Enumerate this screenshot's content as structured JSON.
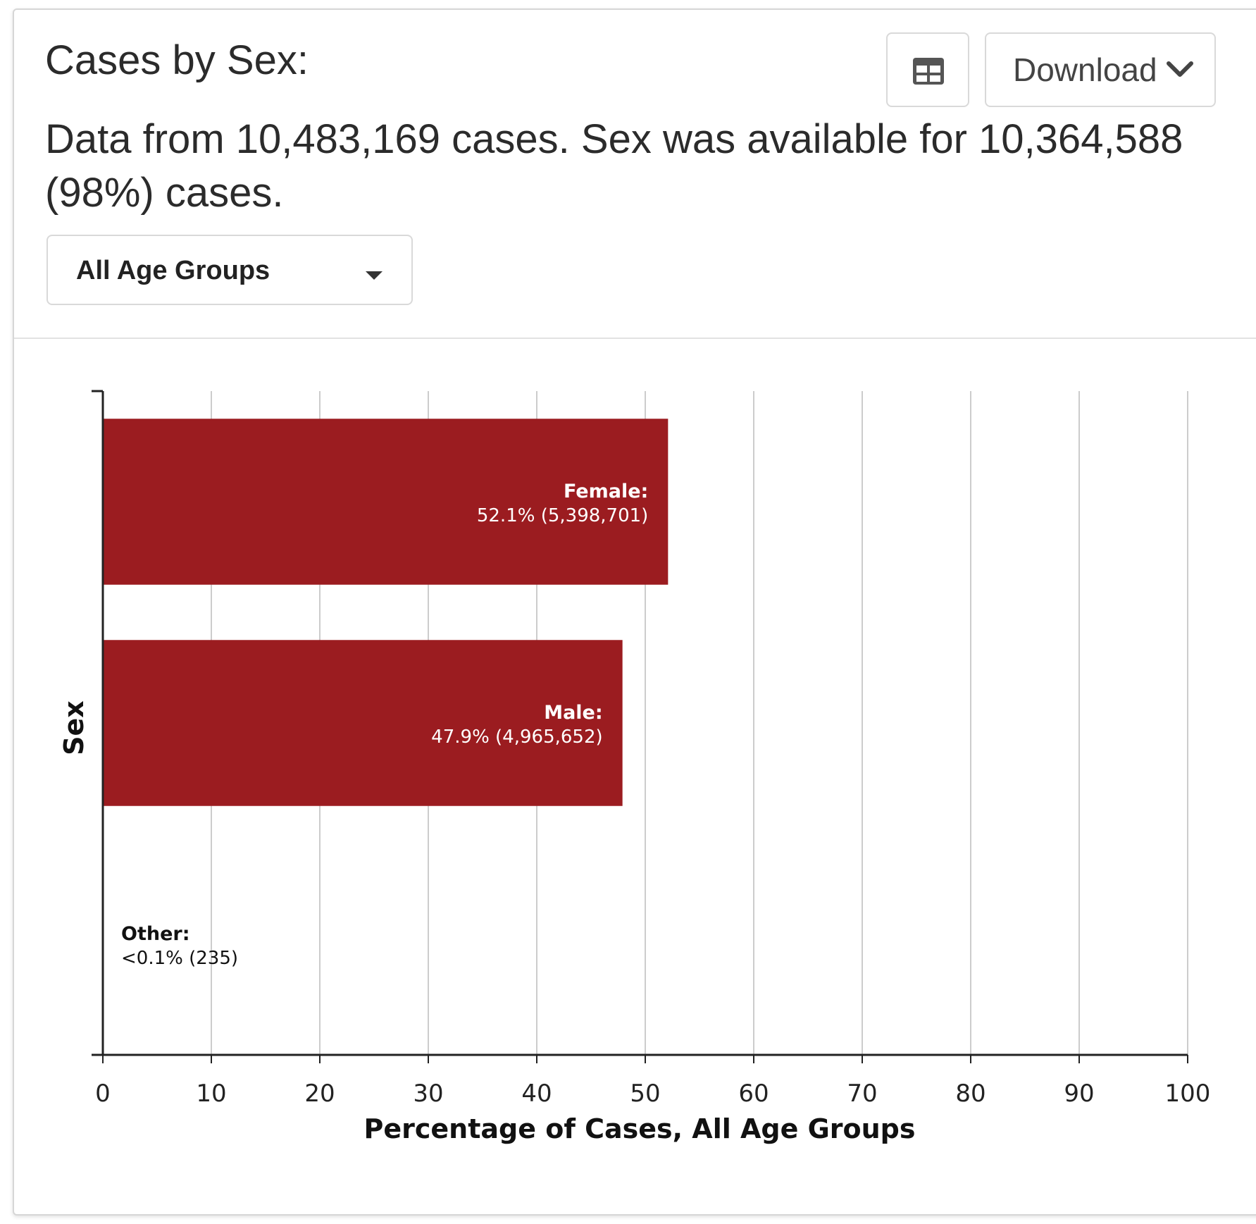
{
  "header": {
    "title": "Cases by Sex:",
    "download_label": "Download",
    "table_icon": "table-icon",
    "download_icon": "chevron-down-icon"
  },
  "summary": {
    "text": "Data from 10,483,169 cases. Sex was available for 10,364,588 (98%) cases."
  },
  "filter": {
    "selected": "All Age Groups",
    "icon": "caret-down-icon"
  },
  "colors": {
    "bar": "#9b1c20",
    "grid": "#cccccc",
    "axis": "#222222"
  },
  "chart_data": {
    "type": "bar",
    "orientation": "horizontal",
    "xlabel": "Percentage of Cases, All Age Groups",
    "ylabel": "Sex",
    "xlim": [
      0,
      100
    ],
    "xticks": [
      0,
      10,
      20,
      30,
      40,
      50,
      60,
      70,
      80,
      90,
      100
    ],
    "grid": true,
    "categories": [
      "Female",
      "Male",
      "Other"
    ],
    "values": [
      52.1,
      47.9,
      0.0
    ],
    "data_labels": [
      {
        "name": "Female:",
        "detail": "52.1% (5,398,701)"
      },
      {
        "name": "Male:",
        "detail": "47.9% (4,965,652)"
      },
      {
        "name": "Other:",
        "detail": "<0.1% (235)"
      }
    ]
  }
}
